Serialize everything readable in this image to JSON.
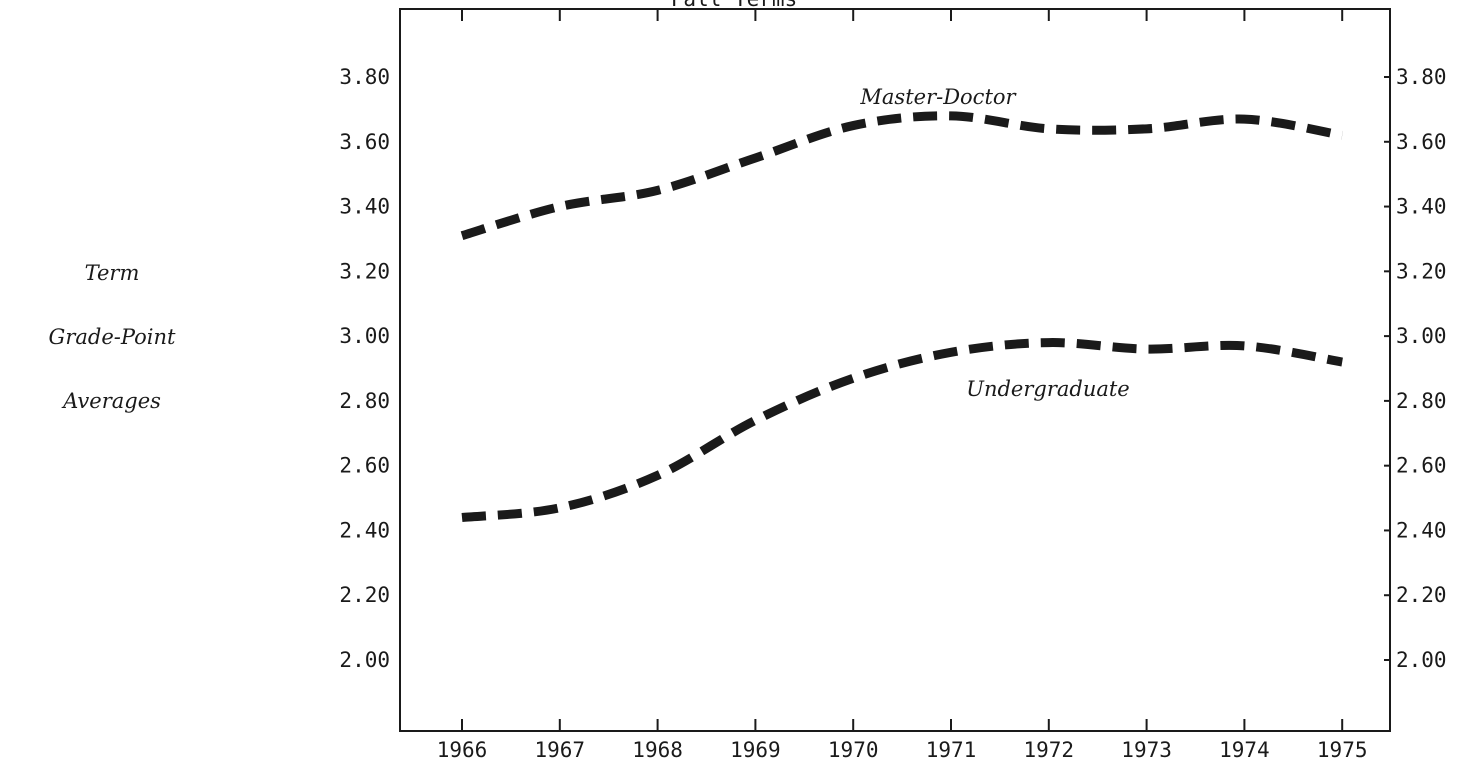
{
  "chart_data": {
    "type": "line",
    "title": "Fall Terms",
    "ylabel_lines": [
      "Term",
      "Grade-Point",
      "Averages"
    ],
    "x": [
      "1966",
      "1967",
      "1968",
      "1969",
      "1970",
      "1971",
      "1972",
      "1973",
      "1974",
      "1975"
    ],
    "y_ticks": [
      "2.00",
      "2.20",
      "2.40",
      "2.60",
      "2.80",
      "3.00",
      "3.20",
      "3.40",
      "3.60",
      "3.80"
    ],
    "ylim": [
      1.8,
      4.0
    ],
    "grid": false,
    "legend": "none",
    "series": [
      {
        "name": "Master-Doctor",
        "values": [
          3.31,
          3.4,
          3.45,
          3.55,
          3.65,
          3.68,
          3.64,
          3.64,
          3.67,
          3.62
        ]
      },
      {
        "name": "Undergraduate",
        "values": [
          2.44,
          2.47,
          2.57,
          2.74,
          2.87,
          2.95,
          2.98,
          2.96,
          2.97,
          2.92
        ]
      }
    ]
  }
}
